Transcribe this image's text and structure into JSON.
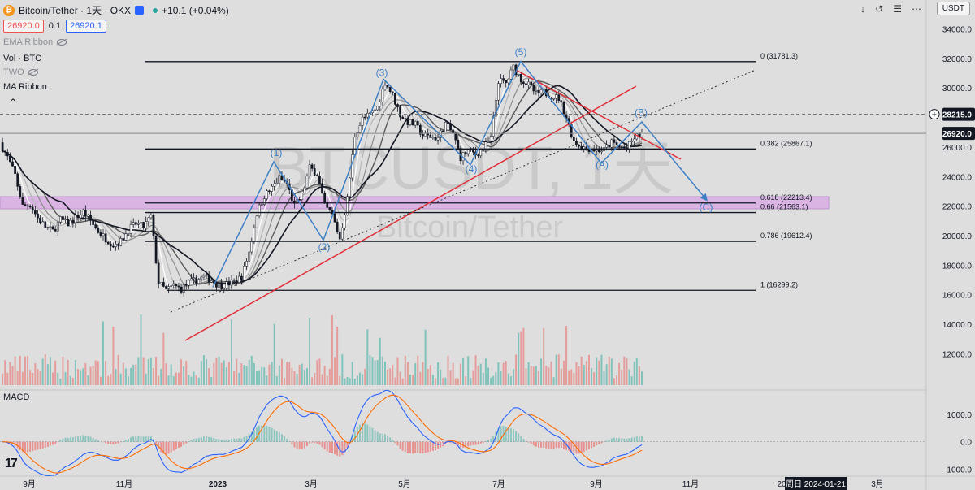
{
  "header": {
    "symbol": "Bitcoin/Tether · 1天 · OKX",
    "change": "+10.1 (+0.04%)",
    "sell_price": "26920.0",
    "spread": "0.1",
    "buy_price": "26920.1",
    "quote_currency": "USDT"
  },
  "indicators": {
    "ema_ribbon": "EMA Ribbon",
    "vol": "Vol · BTC",
    "two": "TWO",
    "ma_ribbon": "MA Ribbon",
    "macd": "MACD"
  },
  "watermark": {
    "symbol": "BTCUSDT, 1天",
    "name": "Bitcoin/Tether"
  },
  "colors": {
    "background": "#dedede",
    "up": "#ffffff",
    "down": "#131722",
    "trendline": "#e0303a",
    "wave": "#3f7fc4",
    "zone": "#d9a8e6"
  },
  "chart_data": {
    "type": "candlestick",
    "y_axis": {
      "range": [
        10100,
        35400
      ],
      "ticks": [
        "34000.0",
        "32000.0",
        "30000.0",
        "28000.0",
        "26000.0",
        "24000.0",
        "22000.0",
        "20000.0",
        "18000.0",
        "16000.0",
        "14000.0",
        "12000.0"
      ],
      "markers": [
        {
          "label": "28215.0",
          "value": 28215
        },
        {
          "label": "26920.0",
          "value": 26920
        }
      ]
    },
    "x_axis": {
      "ticks": [
        "9月",
        "11月",
        "2023",
        "3月",
        "5月",
        "7月",
        "9月",
        "11月",
        "20",
        "3月"
      ],
      "crosshair_label": "周日 2024-01-21"
    },
    "macd_axis": {
      "range": [
        -1200,
        1600
      ],
      "ticks": [
        "1000.0",
        "0.0",
        "-1000.0"
      ]
    },
    "fibonacci": [
      {
        "label": "0 (31781.3)",
        "value": 31781.3
      },
      {
        "label": "0.382 (25867.1)",
        "value": 25867.1
      },
      {
        "label": "0.618 (22213.4)",
        "value": 22213.4
      },
      {
        "label": "0.66 (21563.1)",
        "value": 21563.1
      },
      {
        "label": "0.786 (19612.4)",
        "value": 19612.4
      },
      {
        "label": "1 (16299.2)",
        "value": 16299.2
      }
    ],
    "wave_labels": [
      {
        "label": "(1)",
        "value": 25400
      },
      {
        "label": "(2)",
        "value": 19000
      },
      {
        "label": "(3)",
        "value": 30800
      },
      {
        "label": "(4)",
        "value": 24300
      },
      {
        "label": "(5)",
        "value": 32200
      },
      {
        "label": "(A)",
        "value": 24600
      },
      {
        "label": "(B)",
        "value": 28100
      },
      {
        "label": "(C)",
        "value": 21700
      }
    ],
    "wave_path": [
      16500,
      25000,
      19700,
      30600,
      24800,
      31800,
      24900,
      27700,
      22400
    ],
    "price_series": [
      26300,
      25300,
      24100,
      22000,
      22100,
      21200,
      20600,
      20300,
      21100,
      20800,
      21200,
      21600,
      21000,
      20300,
      19800,
      19400,
      19600,
      20400,
      20800,
      20600,
      21300,
      16800,
      16300,
      16600,
      16400,
      16800,
      17000,
      17200,
      17000,
      16600,
      16700,
      16900,
      17200,
      18900,
      21500,
      22700,
      23200,
      23900,
      23500,
      22000,
      22700,
      24600,
      24200,
      22000,
      21400,
      19800,
      22500,
      26800,
      27900,
      28200,
      28700,
      30400,
      29500,
      28200,
      27700,
      27500,
      26800,
      26700,
      26600,
      27600,
      26900,
      25300,
      25800,
      25500,
      25900,
      26600,
      30500,
      30300,
      31400,
      30600,
      30200,
      29600,
      29700,
      29500,
      29300,
      28000,
      26400,
      26000,
      25900,
      25800,
      25800,
      26300,
      26000,
      25900,
      26600,
      26920
    ]
  }
}
